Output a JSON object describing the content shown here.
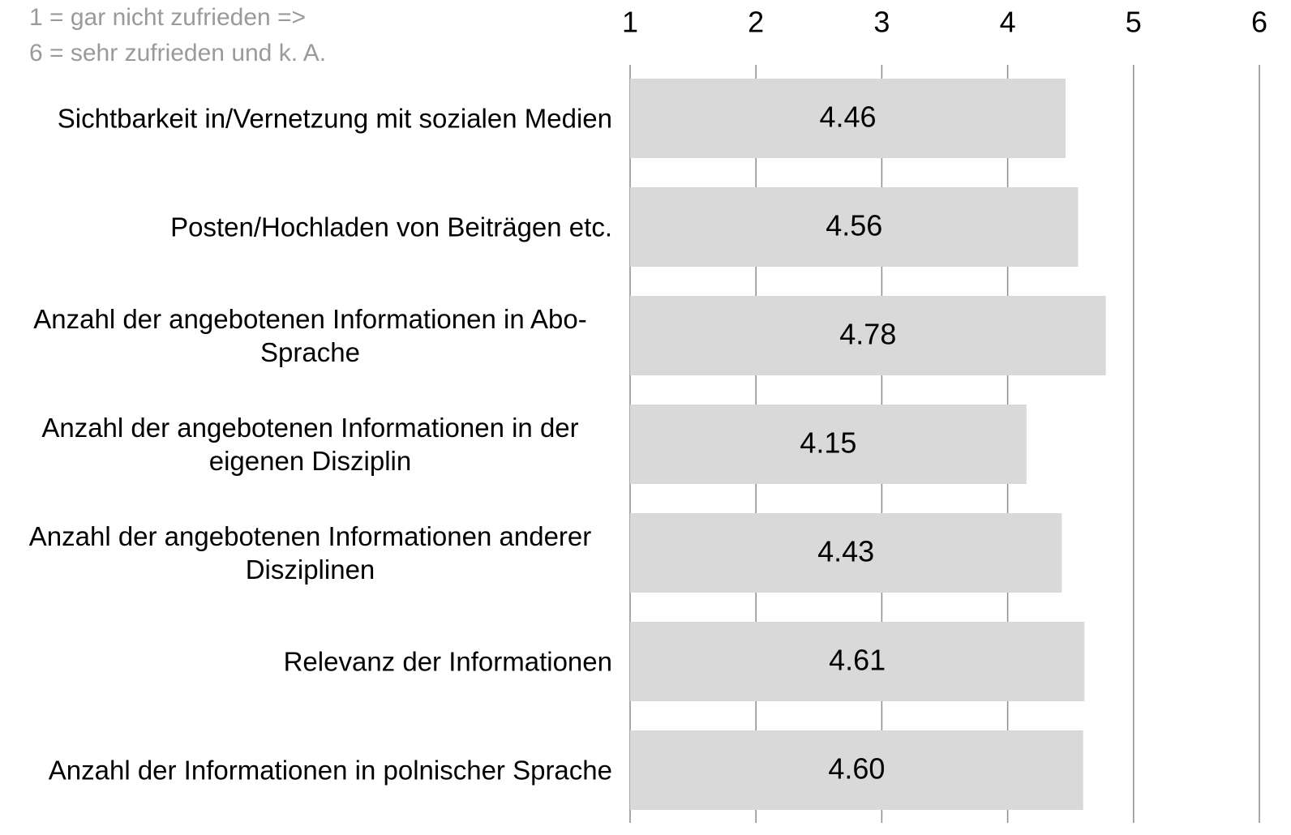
{
  "chart_data": {
    "type": "bar",
    "orientation": "horizontal",
    "annotation": [
      "1 = gar nicht zufrieden =>",
      "6 = sehr zufrieden und k. A."
    ],
    "categories": [
      "Sichtbarkeit in/Vernetzung mit sozialen Medien",
      "Posten/Hochladen von Beiträgen etc.",
      "Anzahl der angebotenen Informationen in Abo-Sprache",
      "Anzahl der angebotenen Informationen in der eigenen Disziplin",
      "Anzahl der angebotenen Informationen anderer Disziplinen",
      "Relevanz der Informationen",
      "Anzahl der Informationen in polnischer Sprache"
    ],
    "values": [
      4.46,
      4.56,
      4.78,
      4.15,
      4.43,
      4.61,
      4.6
    ],
    "value_labels": [
      "4.46",
      "4.56",
      "4.78",
      "4.15",
      "4.43",
      "4.61",
      "4.60"
    ],
    "color": "#d9d9d9",
    "xlim": [
      1,
      6
    ],
    "xticks": [
      1,
      2,
      3,
      4,
      5,
      6
    ],
    "grid": true
  }
}
